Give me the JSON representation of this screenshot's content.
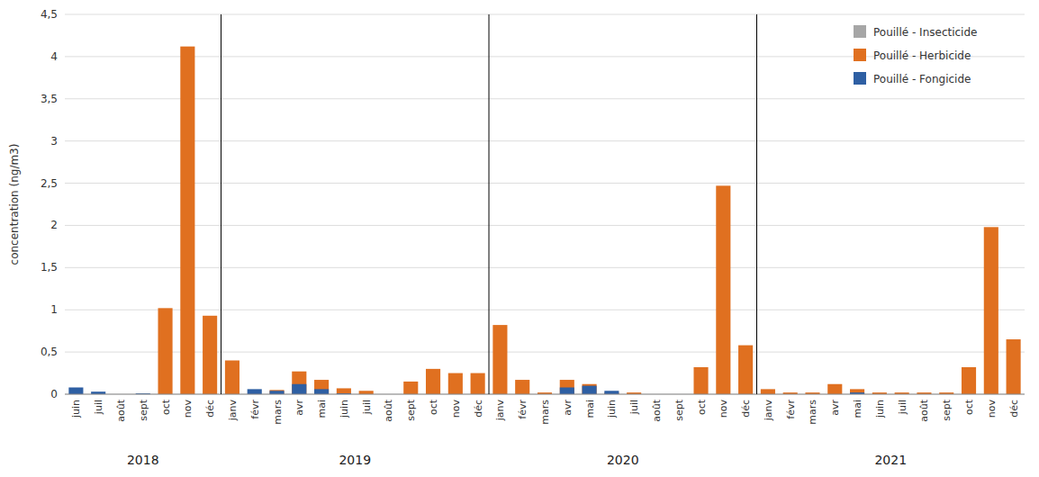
{
  "chart_data": {
    "type": "bar",
    "ylabel": "concentration (ng/m3)",
    "categories": [
      "juin",
      "juil",
      "août",
      "sept",
      "oct",
      "nov",
      "déc",
      "janv",
      "févr",
      "mars",
      "avr",
      "mai",
      "juin",
      "juil",
      "août",
      "sept",
      "oct",
      "nov",
      "déc",
      "janv",
      "févr",
      "mars",
      "avr",
      "mai",
      "juin",
      "juil",
      "août",
      "sept",
      "oct",
      "nov",
      "déc",
      "janv",
      "févr",
      "mars",
      "avr",
      "mai",
      "juin",
      "juil",
      "août",
      "sept",
      "oct",
      "nov",
      "déc"
    ],
    "annotations": [
      {
        "text": "2018",
        "from": 0,
        "to": 6
      },
      {
        "text": "2019",
        "from": 7,
        "to": 18
      },
      {
        "text": "2020",
        "from": 19,
        "to": 30
      },
      {
        "text": "2021",
        "from": 31,
        "to": 42
      }
    ],
    "series": [
      {
        "name": "Pouillé - Insecticide",
        "color": "#a6a6a6",
        "values": [
          0.0,
          0.0,
          0.0,
          0.0,
          0.0,
          0.0,
          0.0,
          0.0,
          0.0,
          0.0,
          0.0,
          0.0,
          0.0,
          0.0,
          0.0,
          0.0,
          0.0,
          0.0,
          0.0,
          0.0,
          0.0,
          0.0,
          0.0,
          0.0,
          0.0,
          0.0,
          0.0,
          0.0,
          0.0,
          0.0,
          0.0,
          0.0,
          0.0,
          0.0,
          0.0,
          0.0,
          0.0,
          0.0,
          0.0,
          0.0,
          0.0,
          0.0,
          0.0
        ]
      },
      {
        "name": "Pouillé - Herbicide",
        "color": "#e07020",
        "values": [
          0.0,
          0.0,
          0.0,
          0.0,
          1.02,
          4.12,
          0.93,
          0.4,
          0.0,
          0.05,
          0.27,
          0.17,
          0.07,
          0.04,
          0.0,
          0.15,
          0.3,
          0.25,
          0.25,
          0.82,
          0.17,
          0.02,
          0.17,
          0.12,
          0.02,
          0.02,
          0.0,
          0.0,
          0.32,
          2.47,
          0.58,
          0.06,
          0.02,
          0.02,
          0.12,
          0.06,
          0.02,
          0.02,
          0.02,
          0.02,
          0.32,
          1.98,
          0.65
        ]
      },
      {
        "name": "Pouillé - Fongicide",
        "color": "#2e5fa3",
        "values": [
          0.08,
          0.03,
          0.0,
          0.01,
          0.0,
          0.0,
          0.0,
          0.0,
          0.06,
          0.04,
          0.12,
          0.06,
          0.01,
          0.0,
          0.0,
          0.0,
          0.0,
          0.0,
          0.0,
          0.0,
          0.0,
          0.0,
          0.08,
          0.1,
          0.04,
          0.0,
          0.0,
          0.0,
          0.0,
          0.0,
          0.0,
          0.0,
          0.0,
          0.0,
          0.0,
          0.02,
          0.0,
          0.0,
          0.0,
          0.0,
          0.0,
          0.0,
          0.0
        ]
      }
    ],
    "stacked": false,
    "ylim": [
      0,
      4.5
    ],
    "yticks": [
      0,
      {
        "value": 0.5,
        "label": "0,5"
      },
      1,
      {
        "value": 1.5,
        "label": "1,5"
      },
      2,
      {
        "value": 2.5,
        "label": "2,5"
      },
      3,
      {
        "value": 3.5,
        "label": "3,5"
      },
      4,
      {
        "value": 4.5,
        "label": "4,5"
      }
    ],
    "grid": true,
    "legend": "upper right"
  }
}
